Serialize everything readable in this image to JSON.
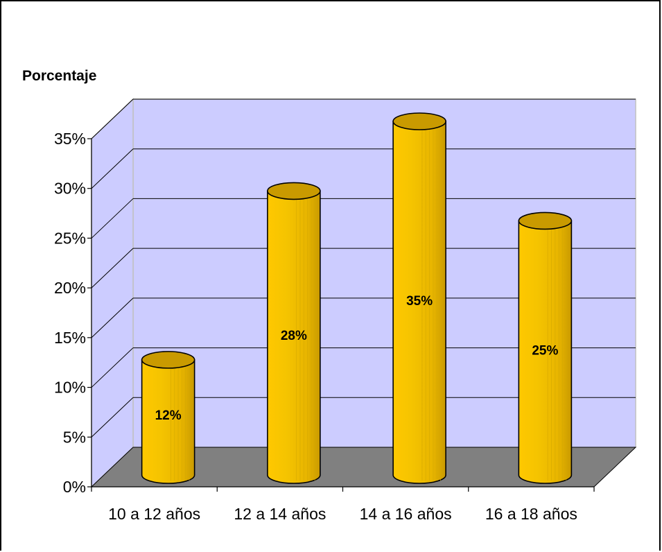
{
  "chart_data": {
    "type": "bar",
    "style": "3d-cylinder",
    "ylabel": "Porcentaje",
    "xlabel": "",
    "ylim": [
      0,
      35
    ],
    "y_ticks": [
      "0%",
      "5%",
      "10%",
      "15%",
      "20%",
      "25%",
      "30%",
      "35%"
    ],
    "categories": [
      "10 a 12 años",
      "12 a 14 años",
      "14 a 16 años",
      "16 a 18 años"
    ],
    "values": [
      12,
      28,
      35,
      25
    ],
    "data_labels": [
      "12%",
      "28%",
      "35%",
      "25%"
    ],
    "grid": true,
    "legend": "none",
    "colors": {
      "bar_fill": "#f5c400",
      "bar_dark": "#c99a00",
      "bar_light": "#ffd84a",
      "back_wall": "#ccccff",
      "side_wall": "#ccccff",
      "floor": "#808080",
      "wall_border": "#c0c0c0",
      "gridline": "#000000"
    }
  }
}
